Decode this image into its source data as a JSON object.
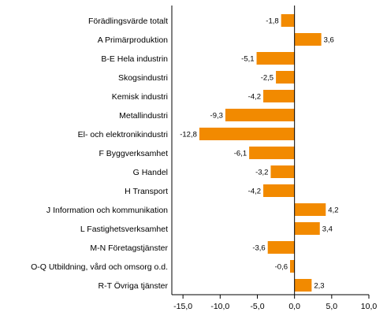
{
  "chart_data": {
    "type": "bar",
    "orientation": "horizontal",
    "categories": [
      "Förädlingsvärde totalt",
      "A Primärproduktion",
      "B-E Hela industrin",
      "Skogsindustri",
      "Kemisk industri",
      "Metallindustri",
      "El- och elektronikindustri",
      "F Byggverksamhet",
      "G Handel",
      "H Transport",
      "J Information och kommunikation",
      "L Fastighetsverksamhet",
      "M-N Företagstjänster",
      "O-Q Utbildning, vård och omsorg o.d.",
      "R-T Övriga tjänster"
    ],
    "values": [
      -1.8,
      3.6,
      -5.1,
      -2.5,
      -4.2,
      -9.3,
      -12.8,
      -6.1,
      -3.2,
      -4.2,
      4.2,
      3.4,
      -3.6,
      -0.6,
      2.3
    ],
    "value_labels": [
      "-1,8",
      "3,6",
      "-5,1",
      "-2,5",
      "-4,2",
      "-9,3",
      "-12,8",
      "-6,1",
      "-3,2",
      "-4,2",
      "4,2",
      "3,4",
      "-3,6",
      "-0,6",
      "2,3"
    ],
    "xlim": [
      -16.5,
      10.0
    ],
    "xticks": [
      -15,
      -10,
      -5,
      0,
      5,
      10
    ],
    "xtick_labels": [
      "-15,0",
      "-10,0",
      "-5,0",
      "0,0",
      "5,0",
      "10,0"
    ],
    "title": "",
    "xlabel": "",
    "ylabel": "",
    "grid": false,
    "legend": "none",
    "bar_color": "#F28A00"
  }
}
